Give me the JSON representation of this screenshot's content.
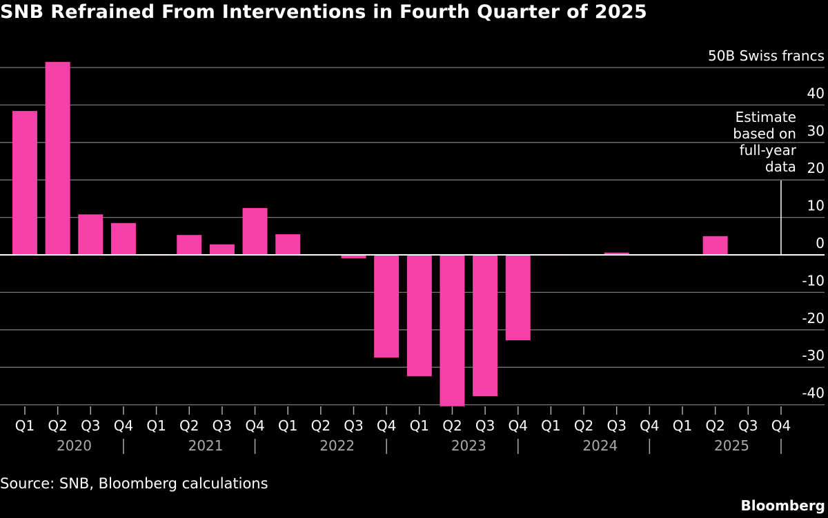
{
  "chart_data": {
    "type": "bar",
    "title": "SNB Refrained From Interventions in Fourth Quarter of 2025",
    "unit_label": "50B Swiss francs",
    "categories": [
      "Q1",
      "Q2",
      "Q3",
      "Q4",
      "Q1",
      "Q2",
      "Q3",
      "Q4",
      "Q1",
      "Q2",
      "Q3",
      "Q4",
      "Q1",
      "Q2",
      "Q3",
      "Q4",
      "Q1",
      "Q2",
      "Q3",
      "Q4",
      "Q1",
      "Q2",
      "Q3",
      "Q4"
    ],
    "years": [
      "2020",
      "2021",
      "2022",
      "2023",
      "2024",
      "2025"
    ],
    "values": [
      38.4,
      51.5,
      10.8,
      8.5,
      0.2,
      5.3,
      2.8,
      12.5,
      5.5,
      0,
      -0.9,
      -27.4,
      -32.4,
      -40.4,
      -37.7,
      -22.8,
      0.2,
      0.1,
      0.6,
      0,
      0.1,
      5.0,
      0.1,
      null
    ],
    "yticks": [
      50,
      40,
      30,
      20,
      10,
      0,
      -10,
      -20,
      -30,
      -40
    ],
    "ylim": [
      -41,
      52
    ],
    "grid": true,
    "bar_color": "#f740a8",
    "annotation": {
      "category_index": 23,
      "lines": [
        "Estimate",
        "based on",
        "full-year",
        "data"
      ]
    },
    "source": "Source: SNB, Bloomberg calculations",
    "brand": "Bloomberg"
  }
}
